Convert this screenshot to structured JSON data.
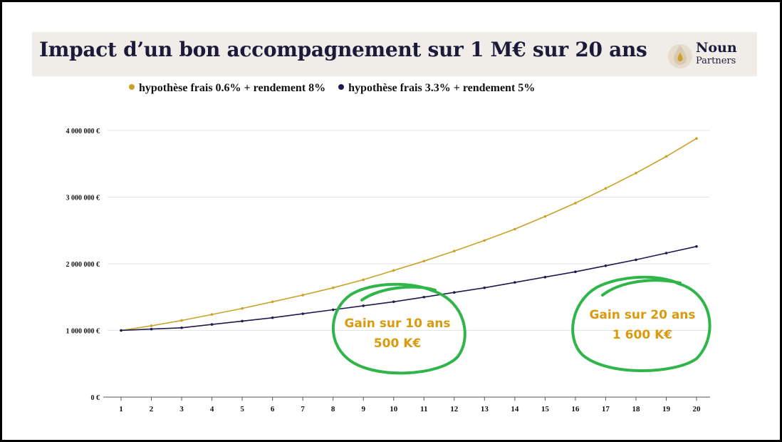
{
  "title": "Impact d’un bon accompagnement sur 1 M€ sur 20 ans",
  "logo": {
    "line1": "Noun",
    "line2": "Partners"
  },
  "colors": {
    "series1": "#c9a227",
    "series2": "#1f1a4d",
    "annotation_text": "#d99a0e",
    "annotation_circle": "#2fb54a",
    "title_bg": "#f0ece8"
  },
  "annotations": [
    {
      "line1": "Gain  sur 10 ans",
      "line2": "500 K€"
    },
    {
      "line1": "Gain  sur 20 ans",
      "line2": "1 600 K€"
    }
  ],
  "chart_data": {
    "type": "line",
    "x": [
      1,
      2,
      3,
      4,
      5,
      6,
      7,
      8,
      9,
      10,
      11,
      12,
      13,
      14,
      15,
      16,
      17,
      18,
      19,
      20
    ],
    "y_ticks": [
      "0 €",
      "1 000 000 €",
      "2 000 000 €",
      "3 000 000 €",
      "4 000 000 €"
    ],
    "y_tick_values": [
      0,
      1000000,
      2000000,
      3000000,
      4000000
    ],
    "ylim": [
      0,
      4000000
    ],
    "grid": true,
    "legend_position": "top",
    "series": [
      {
        "name": "hypothèse frais 0.6% + rendement 8%",
        "values": [
          1000000,
          1070000,
          1150000,
          1240000,
          1330000,
          1430000,
          1530000,
          1640000,
          1760000,
          1900000,
          2040000,
          2190000,
          2350000,
          2520000,
          2710000,
          2910000,
          3130000,
          3360000,
          3610000,
          3880000
        ]
      },
      {
        "name": "hypothèse frais 3.3% + rendement 5%",
        "values": [
          1000000,
          1020000,
          1040000,
          1090000,
          1140000,
          1190000,
          1250000,
          1310000,
          1370000,
          1430000,
          1500000,
          1570000,
          1640000,
          1720000,
          1800000,
          1880000,
          1970000,
          2060000,
          2160000,
          2260000
        ]
      }
    ]
  }
}
